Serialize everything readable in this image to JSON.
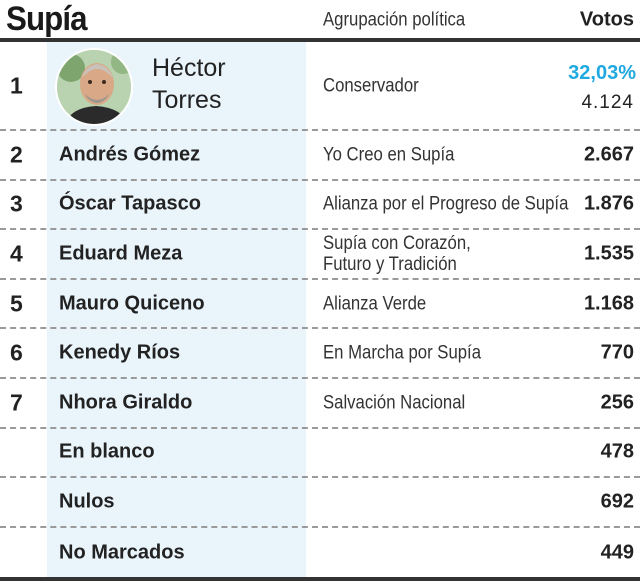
{
  "header": {
    "title": "Supía",
    "party_col": "Agrupación política",
    "votes_col": "Votos"
  },
  "winner": {
    "rank": "1",
    "name_line1": "Héctor",
    "name_line2": "Torres",
    "party": "Conservador",
    "percent": "32,03%",
    "votes": "4.124",
    "accent_color": "#1fa9e1"
  },
  "rows": [
    {
      "rank": "2",
      "name": "Andrés Gómez",
      "party": "Yo Creo en Supía",
      "votes": "2.667"
    },
    {
      "rank": "3",
      "name": "Óscar Tapasco",
      "party": "Alianza por el Progreso de Supía",
      "votes": "1.876"
    },
    {
      "rank": "4",
      "name": "Eduard Meza",
      "party_line1": "Supía con Corazón,",
      "party_line2": "Futuro y Tradición",
      "votes": "1.535"
    },
    {
      "rank": "5",
      "name": "Mauro Quiceno",
      "party": "Alianza Verde",
      "votes": "1.168"
    },
    {
      "rank": "6",
      "name": "Kenedy Ríos",
      "party": "En Marcha por Supía",
      "votes": "770"
    },
    {
      "rank": "7",
      "name": "Nhora Giraldo",
      "party": "Salvación Nacional",
      "votes": "256"
    }
  ],
  "other": [
    {
      "name": "En blanco",
      "votes": "478"
    },
    {
      "name": "Nulos",
      "votes": "692"
    },
    {
      "name": "No Marcados",
      "votes": "449"
    }
  ]
}
